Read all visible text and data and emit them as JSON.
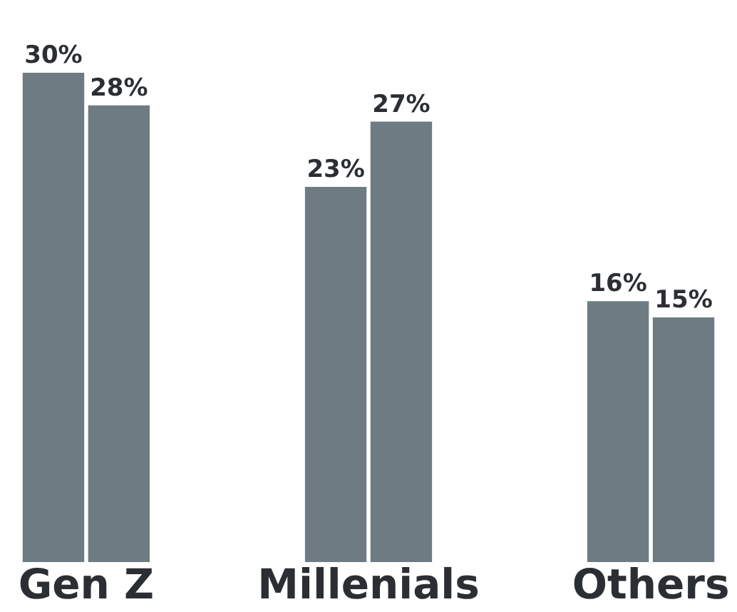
{
  "chart_data": {
    "type": "bar",
    "categories": [
      "Gen Z",
      "Millenials",
      "Others"
    ],
    "series": [
      {
        "color": "#6e7b82",
        "values": [
          30,
          23,
          16
        ],
        "value_labels": [
          "30%",
          "23%",
          "16%"
        ]
      },
      {
        "color": "#6e7b82",
        "values": [
          28,
          27,
          15
        ],
        "value_labels": [
          "28%",
          "27%",
          "15%"
        ]
      }
    ]
  }
}
